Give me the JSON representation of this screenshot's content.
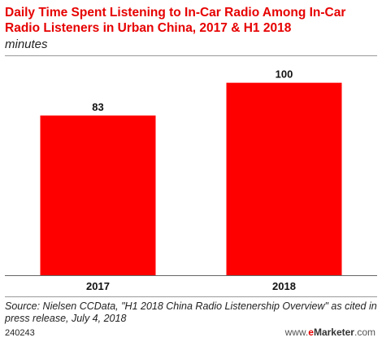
{
  "title": "Daily Time Spent Listening to In-Car Radio Among In-Car Radio Listeners in Urban China, 2017 & H1 2018",
  "subtitle": "minutes",
  "source": "Source: Nielsen CCData, \"H1 2018 China Radio Listenership Overview\" as cited in press release, July 4, 2018",
  "chart_code": "240243",
  "brand": {
    "prefix": "www.",
    "e": "e",
    "rest": "Marketer",
    "suffix": ".com"
  },
  "colors": {
    "bar": "#ff0000",
    "title": "#e60000"
  },
  "chart_data": {
    "type": "bar",
    "title": "Daily Time Spent Listening to In-Car Radio Among In-Car Radio Listeners in Urban China, 2017 & H1 2018",
    "subtitle": "minutes",
    "categories": [
      "2017",
      "2018"
    ],
    "values": [
      83,
      100
    ],
    "xlabel": "",
    "ylabel": "",
    "ylim": [
      0,
      110
    ],
    "grid": false,
    "data_labels": true
  }
}
